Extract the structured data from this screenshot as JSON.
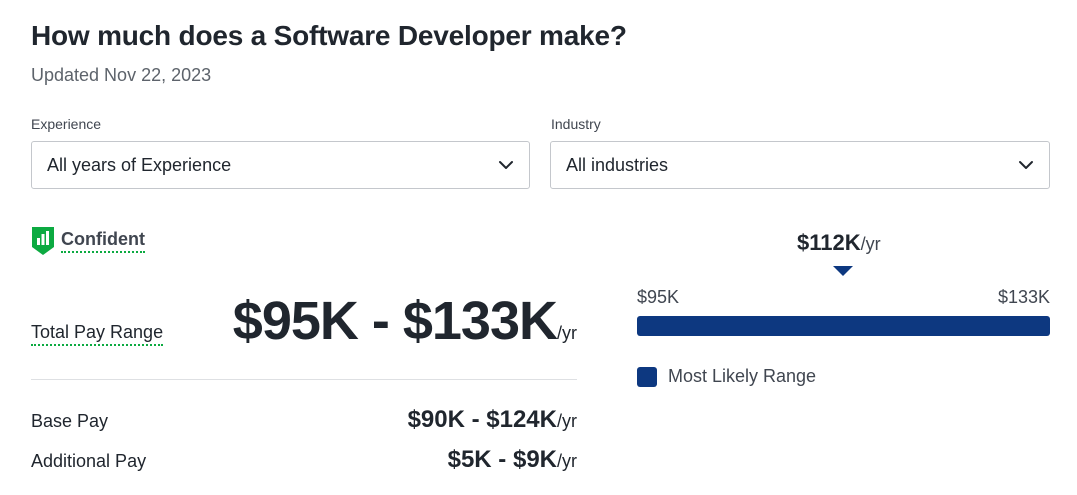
{
  "header": {
    "title": "How much does a Software Developer make?",
    "updated": "Updated Nov 22, 2023"
  },
  "filters": {
    "experience": {
      "label": "Experience",
      "value": "All years of Experience"
    },
    "industry": {
      "label": "Industry",
      "value": "All industries"
    }
  },
  "confidence": {
    "label": "Confident",
    "icon": "bar-chart-shield-icon"
  },
  "total_pay": {
    "label": "Total Pay Range",
    "value": "$95K - $133K",
    "unit": "/yr"
  },
  "base_pay": {
    "label": "Base Pay",
    "value": "$90K - $124K",
    "unit": "/yr"
  },
  "additional_pay": {
    "label": "Additional Pay",
    "value": "$5K - $9K",
    "unit": "/yr"
  },
  "range_chart": {
    "median": "$112K",
    "median_unit": "/yr",
    "low": "$95K",
    "high": "$133K",
    "legend": "Most Likely Range",
    "color": "#0d3880"
  },
  "colors": {
    "accent_green": "#0caa41",
    "range_blue": "#0d3880",
    "text": "#20262e"
  }
}
